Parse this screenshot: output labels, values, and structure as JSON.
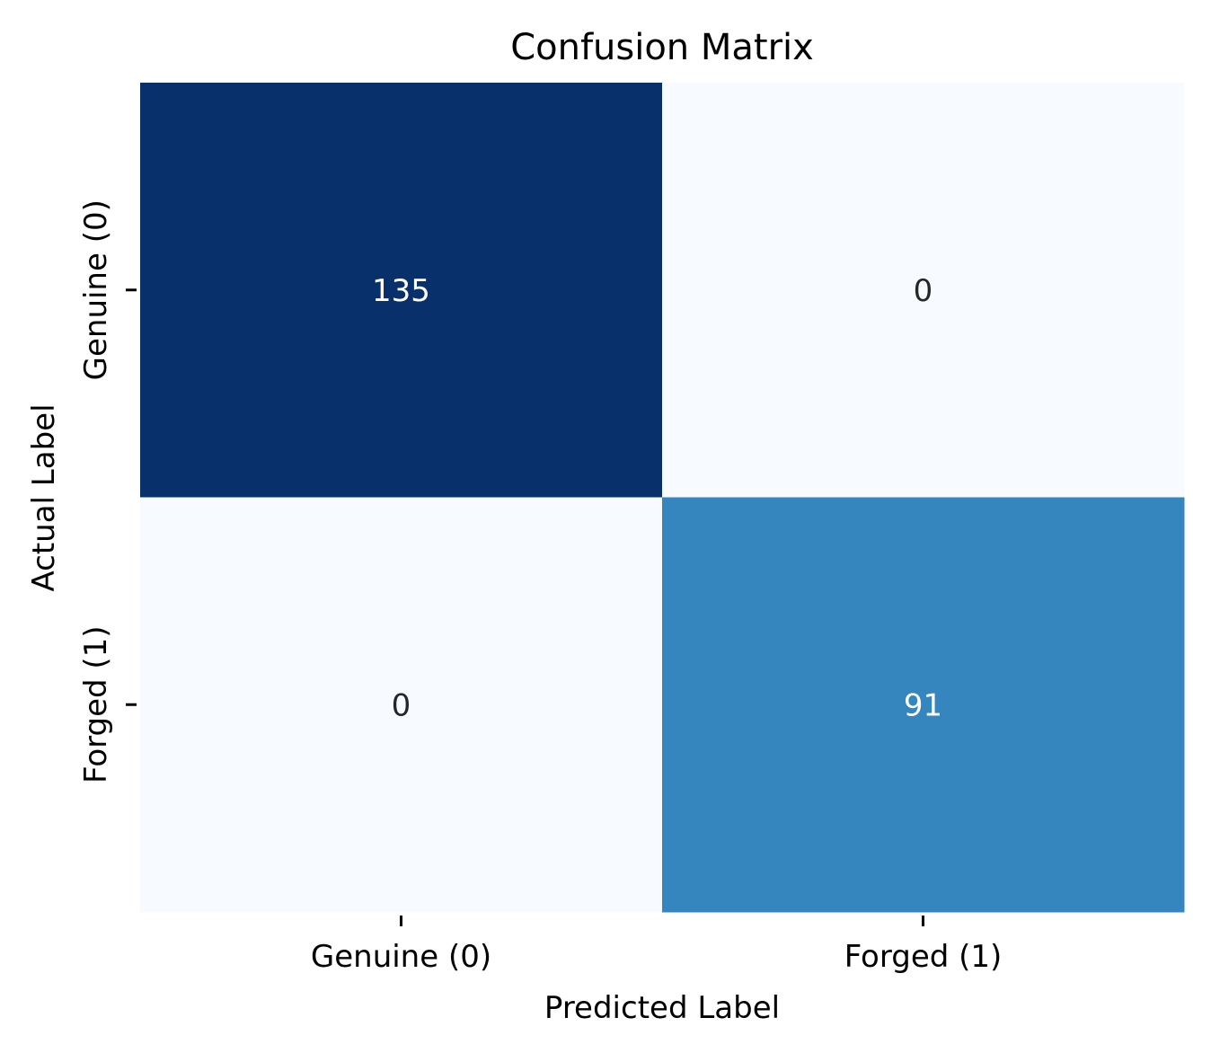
{
  "chart_data": {
    "type": "heatmap",
    "title": "Confusion Matrix",
    "xlabel": "Predicted Label",
    "ylabel": "Actual Label",
    "x_categories": [
      "Genuine (0)",
      "Forged (1)"
    ],
    "y_categories": [
      "Genuine (0)",
      "Forged (1)"
    ],
    "values": [
      [
        135,
        0
      ],
      [
        0,
        91
      ]
    ],
    "colormap": "Blues",
    "colorbar": false,
    "annotations": true,
    "value_range": [
      0,
      135
    ],
    "colors": {
      "cell_135": "#08306b",
      "cell_91": "#3787c0",
      "cell_0": "#f7fbff",
      "text_on_dark": "#ffffff",
      "text_on_light": "#262626"
    }
  }
}
